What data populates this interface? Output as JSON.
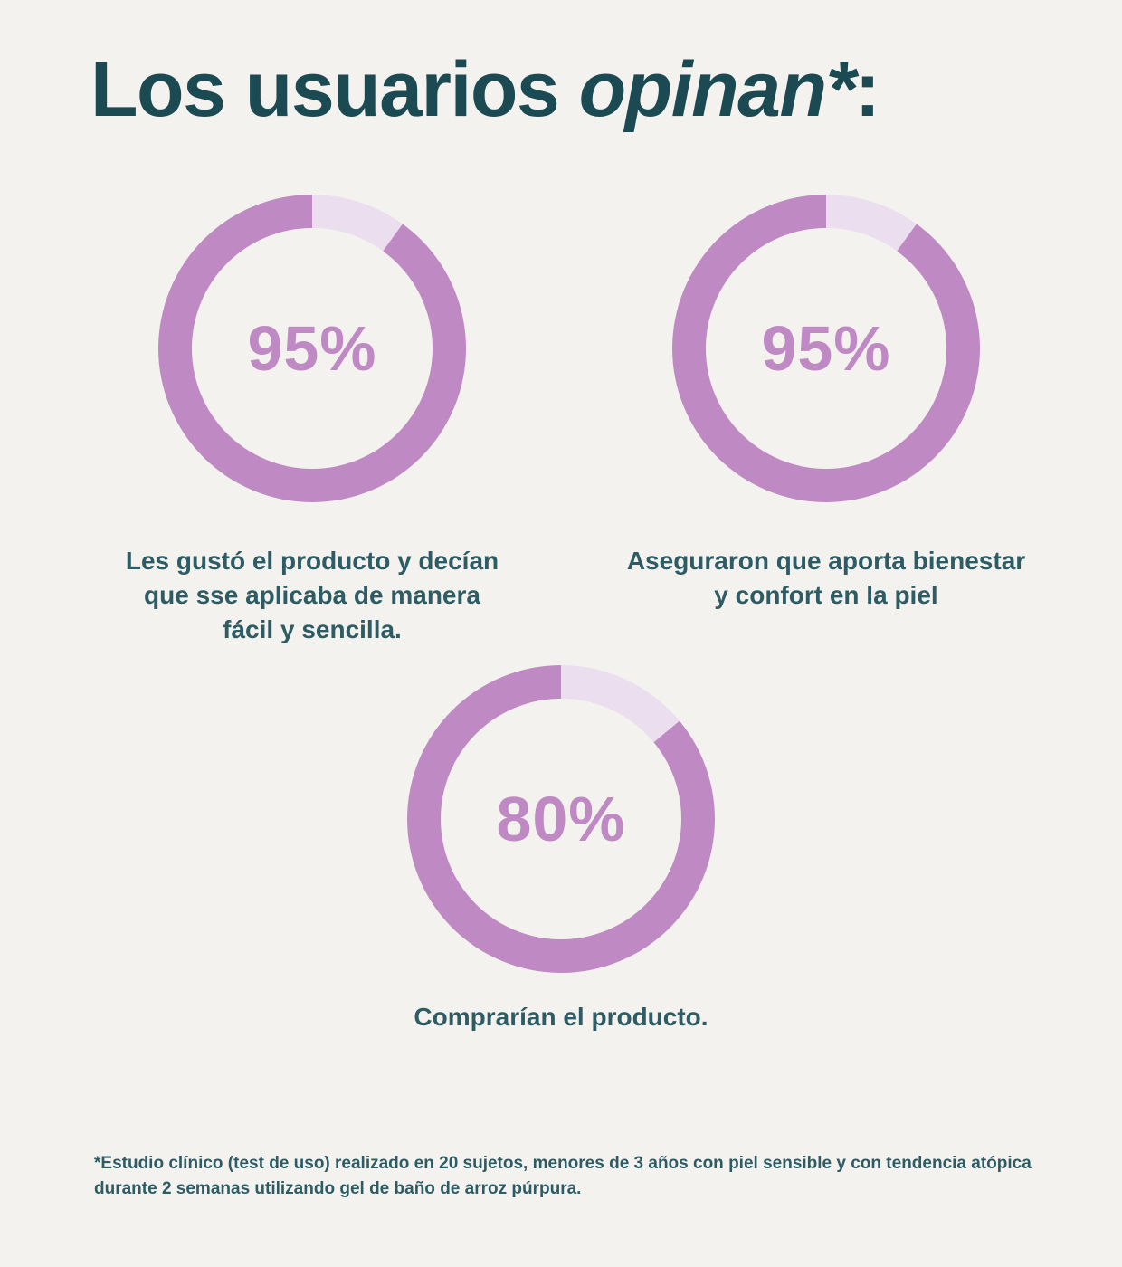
{
  "header": {
    "prefix": "Los usuarios ",
    "emphasis": "opinan*",
    "suffix": ":"
  },
  "colors": {
    "background": "#f4f2ee",
    "title_teal": "#1b4a53",
    "caption_teal": "#2d5c64",
    "donut_fill": "#bf8ac3",
    "donut_remainder": "#ebdeee"
  },
  "chart_data": [
    {
      "type": "pie",
      "subtype": "donut",
      "values": [
        95,
        5
      ],
      "center_label": "95%",
      "caption": "Les gustó el producto y decían\nque sse aplicaba de manera\nfácil y sencilla.",
      "fill_color": "#bf8ac3",
      "remainder_color": "#ebdeee",
      "start_angle_deg": 0,
      "direction": "clockwise",
      "remainder_first": true,
      "display_remainder_pct": 10
    },
    {
      "type": "pie",
      "subtype": "donut",
      "values": [
        95,
        5
      ],
      "center_label": "95%",
      "caption": "Aseguraron que aporta bienestar\ny confort en la piel",
      "fill_color": "#bf8ac3",
      "remainder_color": "#ebdeee",
      "start_angle_deg": 0,
      "direction": "clockwise",
      "remainder_first": true,
      "display_remainder_pct": 10
    },
    {
      "type": "pie",
      "subtype": "donut",
      "values": [
        80,
        20
      ],
      "center_label": "80%",
      "caption": "Comprarían el producto.",
      "fill_color": "#bf8ac3",
      "remainder_color": "#ebdeee",
      "start_angle_deg": 0,
      "direction": "clockwise",
      "remainder_first": true,
      "display_remainder_pct": 14
    }
  ],
  "footnote": "*Estudio clínico (test de uso) realizado en 20 sujetos, menores de 3 años con piel sensible y con tendencia atópica\ndurante 2 semanas utilizando gel de baño de arroz púrpura."
}
